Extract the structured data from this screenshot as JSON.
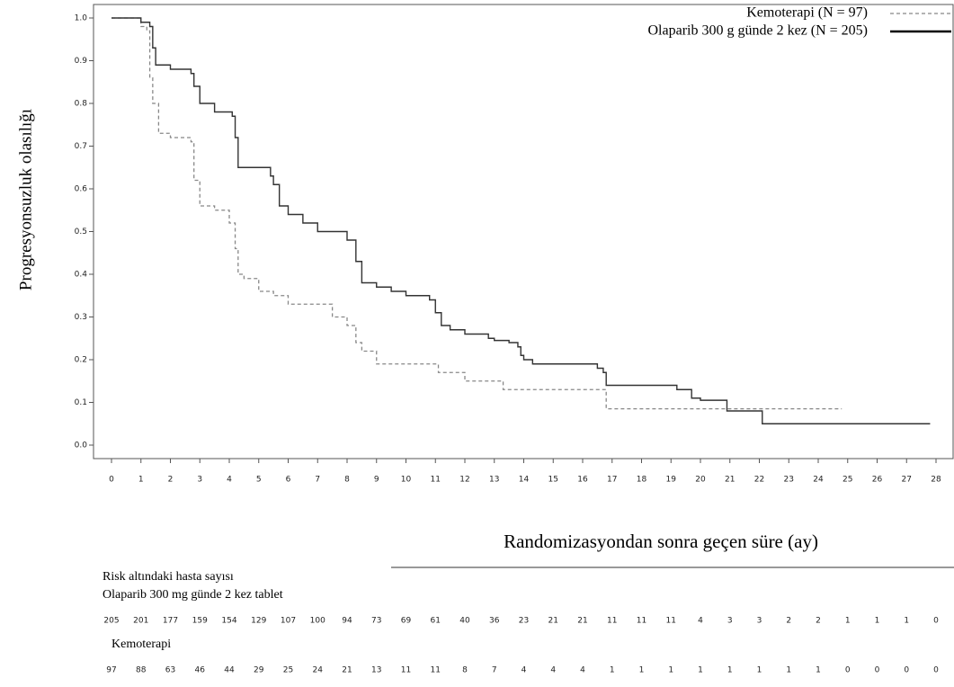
{
  "chart_data": {
    "type": "line",
    "step": true,
    "ylabel": "Progresyonsuzluk olasılığı",
    "xlabel": "Randomizasyondan sonra geçen süre (ay)",
    "xlim": [
      0,
      28
    ],
    "ylim": [
      0,
      1
    ],
    "xticks": [
      0,
      1,
      2,
      3,
      4,
      5,
      6,
      7,
      8,
      9,
      10,
      11,
      12,
      13,
      14,
      15,
      16,
      17,
      18,
      19,
      20,
      21,
      22,
      23,
      24,
      25,
      26,
      27,
      28
    ],
    "yticks": [
      {
        "value": 0,
        "label": "0.0"
      },
      0.1,
      0.2,
      0.3,
      0.4,
      0.5,
      0.6,
      0.7,
      0.8,
      0.9,
      {
        "value": 1,
        "label": "1.0"
      }
    ],
    "legend": "upper right",
    "series": [
      {
        "name": "Kemoterapi (N = 97)",
        "color": "#888888",
        "dashed": true,
        "x": [
          0,
          1,
          1.2,
          1.3,
          1.4,
          1.6,
          2,
          2.7,
          2.8,
          3,
          3.5,
          4,
          4.2,
          4.3,
          4.5,
          5,
          5.5,
          6,
          7,
          7.5,
          8,
          8.3,
          8.5,
          9,
          11,
          11.1,
          12,
          13,
          13.3,
          16.5,
          16.8,
          24.8
        ],
        "values": [
          1,
          0.98,
          0.97,
          0.86,
          0.8,
          0.73,
          0.72,
          0.71,
          0.62,
          0.56,
          0.55,
          0.52,
          0.46,
          0.4,
          0.39,
          0.36,
          0.35,
          0.33,
          0.33,
          0.3,
          0.28,
          0.24,
          0.22,
          0.19,
          0.19,
          0.17,
          0.15,
          0.15,
          0.13,
          0.13,
          0.085,
          0.085
        ]
      },
      {
        "name": "Olaparib 300 g günde 2 kez (N = 205)",
        "color": "#333333",
        "dashed": false,
        "x": [
          0,
          1,
          1.3,
          1.4,
          1.5,
          2,
          2.7,
          2.8,
          3,
          3.5,
          4.1,
          4.2,
          4.3,
          5.4,
          5.5,
          5.7,
          6,
          6.5,
          7,
          8,
          8.3,
          8.5,
          9,
          9.5,
          10,
          10.8,
          11,
          11.2,
          11.5,
          12,
          12.8,
          13,
          13.5,
          13.8,
          13.9,
          14,
          14.3,
          16.3,
          16.5,
          16.7,
          16.8,
          19,
          19.2,
          19.7,
          20,
          20.9,
          22,
          22.1,
          27.8
        ],
        "values": [
          1,
          0.99,
          0.98,
          0.93,
          0.89,
          0.88,
          0.87,
          0.84,
          0.8,
          0.78,
          0.77,
          0.72,
          0.65,
          0.63,
          0.61,
          0.56,
          0.54,
          0.52,
          0.5,
          0.48,
          0.43,
          0.38,
          0.37,
          0.36,
          0.35,
          0.34,
          0.31,
          0.28,
          0.27,
          0.26,
          0.25,
          0.245,
          0.24,
          0.23,
          0.21,
          0.2,
          0.19,
          0.19,
          0.18,
          0.17,
          0.14,
          0.14,
          0.13,
          0.11,
          0.105,
          0.08,
          0.08,
          0.05,
          0.05
        ]
      }
    ],
    "risk_table": {
      "title": "Risk altındaki hasta sayısı",
      "groups": [
        {
          "name": "Olaparib 300 mg günde 2 kez tablet",
          "values": [
            205,
            201,
            177,
            159,
            154,
            129,
            107,
            100,
            94,
            73,
            69,
            61,
            40,
            36,
            23,
            21,
            21,
            11,
            11,
            11,
            4,
            3,
            3,
            2,
            2,
            1,
            1,
            1,
            0
          ]
        },
        {
          "name": "Kemoterapi",
          "values": [
            97,
            88,
            63,
            46,
            44,
            29,
            25,
            24,
            21,
            13,
            11,
            11,
            8,
            7,
            4,
            4,
            4,
            1,
            1,
            1,
            1,
            1,
            1,
            1,
            1,
            0,
            0,
            0,
            0
          ]
        }
      ]
    }
  }
}
